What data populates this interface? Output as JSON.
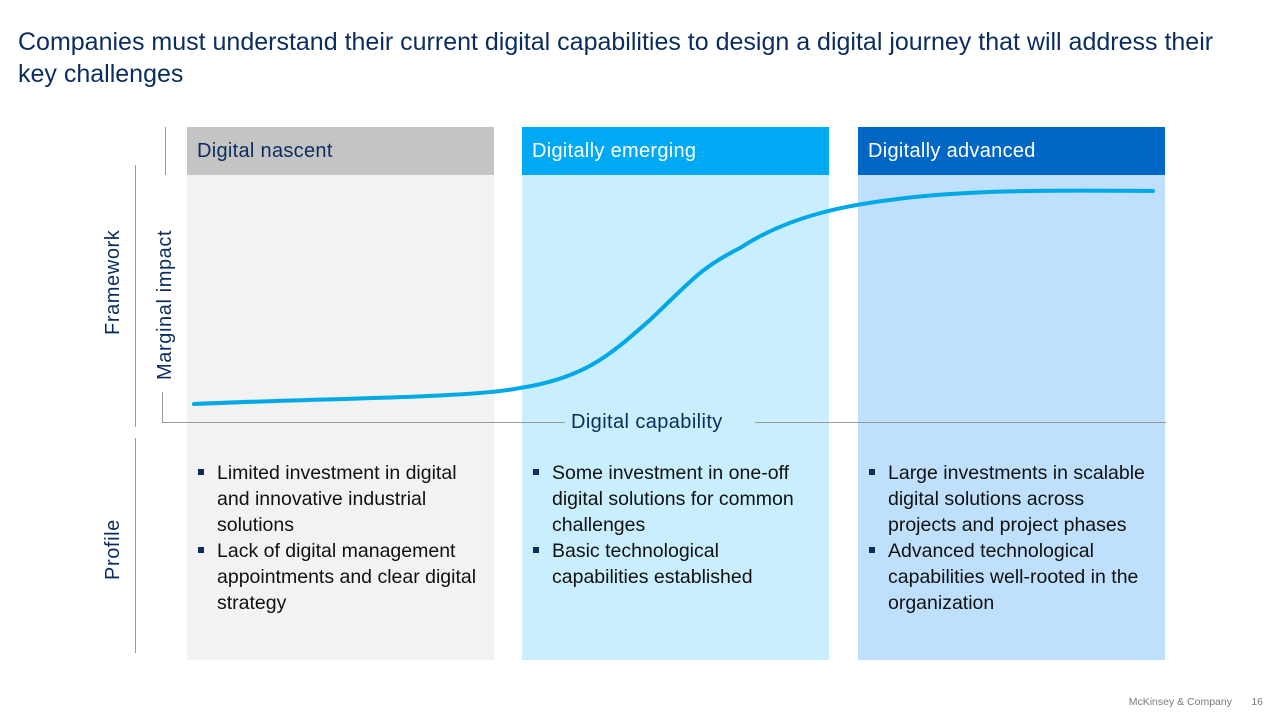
{
  "title": "Companies must understand their current digital capabilities to design a digital journey that will address their key challenges",
  "rows": {
    "framework": "Framework",
    "profile": "Profile"
  },
  "axes": {
    "y_label": "Marginal impact",
    "x_label": "Digital capability"
  },
  "stages": [
    {
      "name": "Digital nascent",
      "header_color": "#c4c4c4",
      "bg_color": "#f2f2f2",
      "bullets": [
        "Limited investment in digital and innovative industrial solutions",
        "Lack of digital management appointments and clear digital strategy"
      ]
    },
    {
      "name": "Digitally emerging",
      "header_color": "#00a9f4",
      "bg_color": "#c9eefd",
      "bullets": [
        "Some investment in one-off digital solutions for common challenges",
        "Basic technological capabilities established"
      ]
    },
    {
      "name": "Digitally advanced",
      "header_color": "#0067c5",
      "bg_color": "#bfe0fc",
      "bullets": [
        "Large investments in scalable digital solutions across projects and project phases",
        "Advanced technological capabilities well-rooted in the organization"
      ]
    }
  ],
  "curve_color": "#00a8e6",
  "footer": {
    "company": "McKinsey & Company",
    "page": "16"
  }
}
